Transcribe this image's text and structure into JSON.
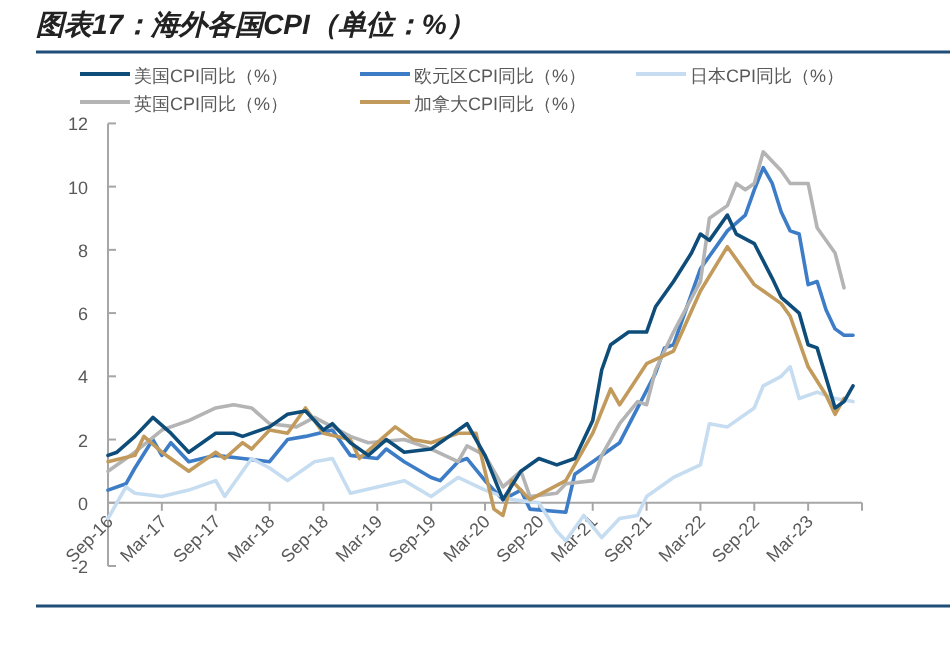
{
  "chart_data": {
    "type": "line",
    "title": "图表17：海外各国CPI（单位：%）",
    "xlim": [
      "2016-09",
      "2023-09"
    ],
    "xticks": [
      {
        "value": "2016-09",
        "label": "Sep-16"
      },
      {
        "value": "2017-03",
        "label": "Mar-17"
      },
      {
        "value": "2017-09",
        "label": "Sep-17"
      },
      {
        "value": "2018-03",
        "label": "Mar-18"
      },
      {
        "value": "2018-09",
        "label": "Sep-18"
      },
      {
        "value": "2019-03",
        "label": "Mar-19"
      },
      {
        "value": "2019-09",
        "label": "Sep-19"
      },
      {
        "value": "2020-03",
        "label": "Mar-20"
      },
      {
        "value": "2020-09",
        "label": "Sep-20"
      },
      {
        "value": "2021-03",
        "label": "Mar-21"
      },
      {
        "value": "2021-09",
        "label": "Sep-21"
      },
      {
        "value": "2022-03",
        "label": "Mar-22"
      },
      {
        "value": "2022-09",
        "label": "Sep-22"
      },
      {
        "value": "2023-03",
        "label": "Mar-23"
      }
    ],
    "ylim": [
      -2,
      12
    ],
    "yticks": [
      -2,
      0,
      2,
      4,
      6,
      8,
      10,
      12
    ],
    "grid": false,
    "legend": "top",
    "marker": "none",
    "line_style": "solid",
    "series": [
      {
        "name": "美国CPI同比（%）",
        "color": "#0e4d7a",
        "x": [
          "2016-09",
          "2016-10",
          "2016-12",
          "2017-02",
          "2017-04",
          "2017-06",
          "2017-09",
          "2017-11",
          "2017-12",
          "2018-03",
          "2018-05",
          "2018-07",
          "2018-09",
          "2018-10",
          "2018-12",
          "2019-02",
          "2019-04",
          "2019-06",
          "2019-09",
          "2019-11",
          "2020-01",
          "2020-03",
          "2020-05",
          "2020-07",
          "2020-09",
          "2020-11",
          "2021-01",
          "2021-03",
          "2021-04",
          "2021-05",
          "2021-07",
          "2021-09",
          "2021-10",
          "2021-12",
          "2022-02",
          "2022-03",
          "2022-04",
          "2022-06",
          "2022-07",
          "2022-09",
          "2022-11",
          "2022-12",
          "2023-02",
          "2023-03",
          "2023-04",
          "2023-06",
          "2023-07",
          "2023-08"
        ],
        "values": [
          1.5,
          1.6,
          2.1,
          2.7,
          2.2,
          1.6,
          2.2,
          2.2,
          2.1,
          2.4,
          2.8,
          2.9,
          2.3,
          2.5,
          1.9,
          1.5,
          2.0,
          1.6,
          1.7,
          2.1,
          2.5,
          1.5,
          0.1,
          1.0,
          1.4,
          1.2,
          1.4,
          2.6,
          4.2,
          5.0,
          5.4,
          5.4,
          6.2,
          7.0,
          7.9,
          8.5,
          8.3,
          9.1,
          8.5,
          8.2,
          7.1,
          6.5,
          6.0,
          5.0,
          4.9,
          3.0,
          3.2,
          3.7
        ]
      },
      {
        "name": "欧元区CPI同比（%）",
        "color": "#3d7dc8",
        "x": [
          "2016-09",
          "2016-11",
          "2016-12",
          "2017-02",
          "2017-03",
          "2017-04",
          "2017-06",
          "2017-09",
          "2017-12",
          "2018-03",
          "2018-05",
          "2018-07",
          "2018-10",
          "2018-12",
          "2019-03",
          "2019-04",
          "2019-06",
          "2019-09",
          "2019-10",
          "2019-12",
          "2020-01",
          "2020-03",
          "2020-05",
          "2020-07",
          "2020-08",
          "2020-12",
          "2021-01",
          "2021-03",
          "2021-06",
          "2021-08",
          "2021-10",
          "2021-11",
          "2021-12",
          "2022-03",
          "2022-06",
          "2022-08",
          "2022-09",
          "2022-10",
          "2022-11",
          "2022-12",
          "2023-01",
          "2023-02",
          "2023-03",
          "2023-04",
          "2023-05",
          "2023-06",
          "2023-07",
          "2023-08"
        ],
        "values": [
          0.4,
          0.6,
          1.1,
          2.0,
          1.5,
          1.9,
          1.3,
          1.5,
          1.4,
          1.3,
          2.0,
          2.1,
          2.3,
          1.5,
          1.4,
          1.7,
          1.3,
          0.8,
          0.7,
          1.3,
          1.4,
          0.7,
          0.1,
          0.4,
          -0.2,
          -0.3,
          0.9,
          1.3,
          1.9,
          3.0,
          4.1,
          4.9,
          5.0,
          7.4,
          8.6,
          9.1,
          9.9,
          10.6,
          10.1,
          9.2,
          8.6,
          8.5,
          6.9,
          7.0,
          6.1,
          5.5,
          5.3,
          5.3
        ]
      },
      {
        "name": "日本CPI同比（%）",
        "color": "#c6ddf1",
        "x": [
          "2016-09",
          "2016-11",
          "2016-12",
          "2017-03",
          "2017-06",
          "2017-09",
          "2017-10",
          "2018-01",
          "2018-03",
          "2018-05",
          "2018-08",
          "2018-10",
          "2018-12",
          "2019-03",
          "2019-06",
          "2019-09",
          "2019-12",
          "2020-03",
          "2020-06",
          "2020-09",
          "2020-11",
          "2020-12",
          "2021-02",
          "2021-04",
          "2021-06",
          "2021-08",
          "2021-09",
          "2021-12",
          "2022-03",
          "2022-04",
          "2022-06",
          "2022-09",
          "2022-10",
          "2022-12",
          "2023-01",
          "2023-02",
          "2023-04",
          "2023-06",
          "2023-08"
        ],
        "values": [
          -0.5,
          0.5,
          0.3,
          0.2,
          0.4,
          0.7,
          0.2,
          1.4,
          1.1,
          0.7,
          1.3,
          1.4,
          0.3,
          0.5,
          0.7,
          0.2,
          0.8,
          0.4,
          0.1,
          0.0,
          -0.9,
          -1.2,
          -0.4,
          -1.1,
          -0.5,
          -0.4,
          0.2,
          0.8,
          1.2,
          2.5,
          2.4,
          3.0,
          3.7,
          4.0,
          4.3,
          3.3,
          3.5,
          3.3,
          3.2
        ]
      },
      {
        "name": "英国CPI同比（%）",
        "color": "#b4b4b4",
        "x": [
          "2016-09",
          "2016-12",
          "2017-03",
          "2017-06",
          "2017-09",
          "2017-11",
          "2018-01",
          "2018-03",
          "2018-06",
          "2018-08",
          "2018-12",
          "2019-02",
          "2019-06",
          "2019-09",
          "2019-12",
          "2020-01",
          "2020-03",
          "2020-05",
          "2020-07",
          "2020-08",
          "2020-11",
          "2020-12",
          "2021-03",
          "2021-04",
          "2021-06",
          "2021-08",
          "2021-09",
          "2021-10",
          "2021-12",
          "2022-03",
          "2022-04",
          "2022-06",
          "2022-07",
          "2022-08",
          "2022-09",
          "2022-10",
          "2022-12",
          "2023-01",
          "2023-03",
          "2023-04",
          "2023-06",
          "2023-07"
        ],
        "values": [
          1.0,
          1.6,
          2.3,
          2.6,
          3.0,
          3.1,
          3.0,
          2.5,
          2.4,
          2.7,
          2.1,
          1.9,
          2.0,
          1.7,
          1.3,
          1.8,
          1.5,
          0.5,
          1.0,
          0.2,
          0.3,
          0.6,
          0.7,
          1.5,
          2.5,
          3.2,
          3.1,
          4.2,
          5.4,
          7.0,
          9.0,
          9.4,
          10.1,
          9.9,
          10.1,
          11.1,
          10.5,
          10.1,
          10.1,
          8.7,
          7.9,
          6.8
        ]
      },
      {
        "name": "加拿大CPI同比（%）",
        "color": "#c29b5c",
        "x": [
          "2016-09",
          "2016-12",
          "2017-01",
          "2017-03",
          "2017-06",
          "2017-09",
          "2017-10",
          "2017-12",
          "2018-01",
          "2018-03",
          "2018-05",
          "2018-07",
          "2018-09",
          "2018-12",
          "2019-01",
          "2019-03",
          "2019-05",
          "2019-07",
          "2019-09",
          "2019-12",
          "2020-02",
          "2020-04",
          "2020-05",
          "2020-06",
          "2020-08",
          "2020-12",
          "2021-03",
          "2021-05",
          "2021-06",
          "2021-09",
          "2021-12",
          "2022-03",
          "2022-06",
          "2022-09",
          "2022-12",
          "2023-01",
          "2023-03",
          "2023-05",
          "2023-06",
          "2023-07"
        ],
        "values": [
          1.3,
          1.5,
          2.1,
          1.6,
          1.0,
          1.6,
          1.4,
          1.9,
          1.7,
          2.3,
          2.2,
          3.0,
          2.2,
          2.0,
          1.4,
          1.9,
          2.4,
          2.0,
          1.9,
          2.2,
          2.2,
          -0.2,
          -0.4,
          0.7,
          0.1,
          0.7,
          2.2,
          3.6,
          3.1,
          4.4,
          4.8,
          6.7,
          8.1,
          6.9,
          6.3,
          5.9,
          4.3,
          3.4,
          2.8,
          3.3
        ]
      }
    ]
  }
}
